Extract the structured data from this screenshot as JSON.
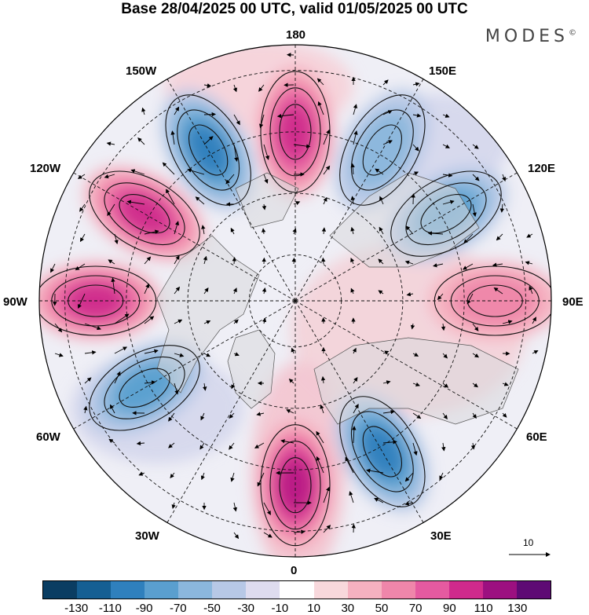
{
  "title": "Base 28/04/2025 00 UTC, valid 01/05/2025 00 UTC",
  "brand": "MODES",
  "brand_mark": "©",
  "longitude_labels": {
    "top": "180",
    "bottom": "0",
    "left": "90W",
    "right": "90E",
    "upper_left_outer": "150W",
    "upper_left_inner": "120W",
    "upper_right_outer": "150E",
    "upper_right_inner": "120E",
    "lower_left_outer": "30W",
    "lower_left_inner": "60W",
    "lower_right_outer": "30E",
    "lower_right_inner": "60E"
  },
  "vector_scale_label": "10",
  "colorbar": {
    "colors": [
      "#0a3d62",
      "#155f93",
      "#2f80bd",
      "#5a9fcf",
      "#8bb7dd",
      "#b7c8e6",
      "#dedcef",
      "#ffffff",
      "#f8d8dc",
      "#f5b1c0",
      "#ef86aa",
      "#e55aa0",
      "#cf2a8c",
      "#9c1080",
      "#5e0a74"
    ],
    "ticks": [
      "-130",
      "-110",
      "-90",
      "-70",
      "-50",
      "-30",
      "-10",
      "10",
      "30",
      "50",
      "70",
      "90",
      "110",
      "130"
    ]
  },
  "anomaly_centers": [
    {
      "sign": "positive",
      "strength": 4,
      "lon_label": "180"
    },
    {
      "sign": "negative",
      "strength": 4,
      "lon_label": "150W"
    },
    {
      "sign": "positive",
      "strength": 4,
      "lon_label": "120W"
    },
    {
      "sign": "positive",
      "strength": 4,
      "lon_label": "90W"
    },
    {
      "sign": "negative",
      "strength": 3,
      "lon_label": "60W"
    },
    {
      "sign": "positive",
      "strength": 5,
      "lon_label": "0"
    },
    {
      "sign": "negative",
      "strength": 4,
      "lon_label": "30E"
    },
    {
      "sign": "positive",
      "strength": 2,
      "lon_label": "90E"
    },
    {
      "sign": "negative",
      "strength": 3,
      "lon_label": "120E"
    },
    {
      "sign": "negative",
      "strength": 2,
      "lon_label": "150E"
    }
  ]
}
